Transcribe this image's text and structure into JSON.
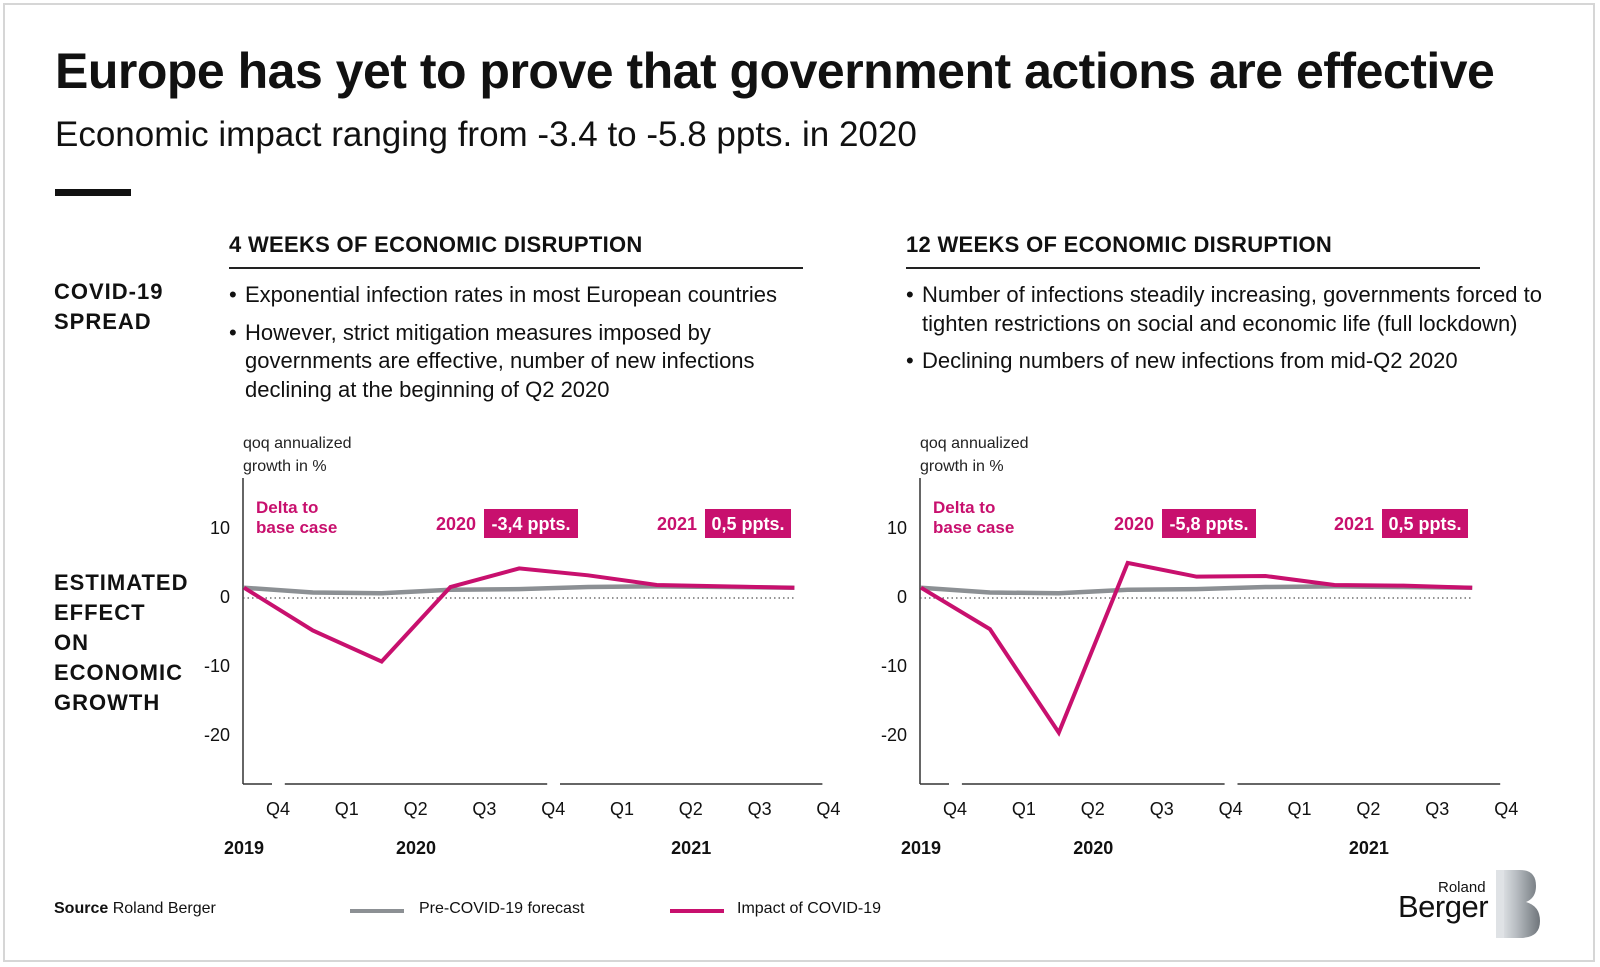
{
  "title": "Europe has yet to prove that government actions are effective",
  "subtitle": "Economic impact ranging from -3.4 to -5.8 ppts. in 2020",
  "side_labels": {
    "spread": "COVID-19\nSPREAD",
    "effect": "ESTIMATED\nEFFECT\nON\nECONOMIC\nGROWTH"
  },
  "panels": [
    {
      "heading": "4 WEEKS OF ECONOMIC DISRUPTION",
      "bullets": [
        "Exponential infection rates in most European countries",
        "However, strict mitigation measures imposed by governments are effective, number of new infections declining at the beginning of Q2 2020"
      ]
    },
    {
      "heading": "12 WEEKS OF ECONOMIC DISRUPTION",
      "bullets": [
        "Number of infections steadily increasing, governments forced to tighten restrictions on social and economic life (full lockdown)",
        "Declining numbers of new infections from mid-Q2 2020"
      ]
    }
  ],
  "colors": {
    "impact": "#c8106e",
    "forecast": "#8c9094",
    "text": "#111111"
  },
  "chart_data": [
    {
      "type": "line",
      "title": "4 WEEKS OF ECONOMIC DISRUPTION",
      "ylabel": "qoq annualized\ngrowth in %",
      "ylim": [
        -27,
        17
      ],
      "yticks": [
        10,
        0,
        -10,
        -20
      ],
      "categories": [
        "Q4",
        "Q1",
        "Q2",
        "Q3",
        "Q4",
        "Q1",
        "Q2",
        "Q3",
        "Q4"
      ],
      "years": [
        {
          "label": "2019",
          "from": 0,
          "to": 0
        },
        {
          "label": "2020",
          "from": 1,
          "to": 4
        },
        {
          "label": "2021",
          "from": 5,
          "to": 8
        }
      ],
      "series": [
        {
          "name": "Pre-COVID-19 forecast",
          "values": [
            1.2,
            0.5,
            0.4,
            0.9,
            1.0,
            1.3,
            1.4,
            1.3,
            1.2
          ]
        },
        {
          "name": "Impact of COVID-19",
          "values": [
            1.2,
            -5.0,
            -9.5,
            1.3,
            4.0,
            3.0,
            1.6,
            1.4,
            1.2
          ]
        }
      ],
      "annotations": {
        "delta_label": "Delta to\nbase case",
        "deltas": [
          {
            "year": "2020",
            "value": "-3,4 ppts."
          },
          {
            "year": "2021",
            "value": "0,5 ppts."
          }
        ]
      }
    },
    {
      "type": "line",
      "title": "12 WEEKS OF ECONOMIC DISRUPTION",
      "ylabel": "qoq annualized\ngrowth in %",
      "ylim": [
        -27,
        17
      ],
      "yticks": [
        10,
        0,
        -10,
        -20
      ],
      "categories": [
        "Q4",
        "Q1",
        "Q2",
        "Q3",
        "Q4",
        "Q1",
        "Q2",
        "Q3",
        "Q4"
      ],
      "years": [
        {
          "label": "2019",
          "from": 0,
          "to": 0
        },
        {
          "label": "2020",
          "from": 1,
          "to": 4
        },
        {
          "label": "2021",
          "from": 5,
          "to": 8
        }
      ],
      "series": [
        {
          "name": "Pre-COVID-19 forecast",
          "values": [
            1.2,
            0.5,
            0.4,
            0.9,
            1.0,
            1.3,
            1.4,
            1.3,
            1.2
          ]
        },
        {
          "name": "Impact of COVID-19",
          "values": [
            1.2,
            -4.8,
            -19.8,
            4.8,
            2.8,
            2.9,
            1.6,
            1.5,
            1.2
          ]
        }
      ],
      "annotations": {
        "delta_label": "Delta to\nbase case",
        "deltas": [
          {
            "year": "2020",
            "value": "-5,8 ppts."
          },
          {
            "year": "2021",
            "value": "0,5 ppts."
          }
        ]
      }
    }
  ],
  "footer": {
    "source_label": "Source",
    "source_text": "Roland Berger",
    "legend": [
      "Pre-COVID-19 forecast",
      "Impact of COVID-19"
    ]
  },
  "logo": {
    "line1": "Roland",
    "line2": "Berger"
  }
}
